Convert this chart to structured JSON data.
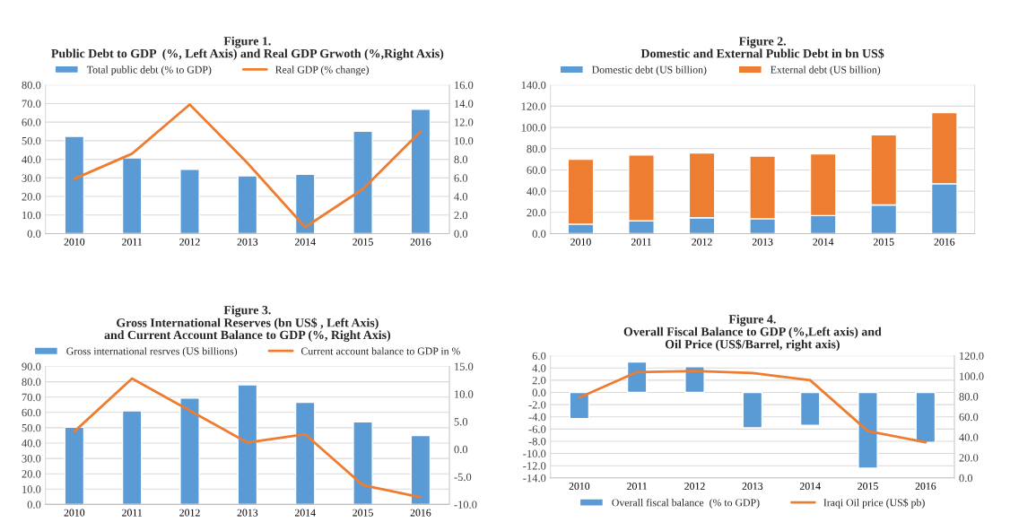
{
  "chart_data": [
    {
      "type": "bar",
      "title": "Figure 1.\nPublic Debt to GDP  (%, Left Axis) and Real GDP Grwoth (%,Right Axis)",
      "categories": [
        "2010",
        "2011",
        "2012",
        "2013",
        "2014",
        "2015",
        "2016"
      ],
      "series": [
        {
          "name": "Total public debt (% to GDP)",
          "type": "bar",
          "color": "#5b9bd5",
          "values": [
            52.3,
            40.8,
            34.6,
            31.1,
            31.9,
            55.1,
            66.9
          ]
        },
        {
          "name": "Real GDP (% change)",
          "type": "line",
          "axis": "y2",
          "color": "#ed7d31",
          "values": [
            5.9,
            8.6,
            13.9,
            7.6,
            0.7,
            4.8,
            11.0
          ]
        }
      ],
      "ylim": [
        0,
        80
      ],
      "yticks": [
        {
          "value": 0,
          "label": "0.0"
        },
        {
          "value": 10,
          "label": "10.0"
        },
        {
          "value": 20,
          "label": "20.0"
        },
        {
          "value": 30,
          "label": "30.0"
        },
        {
          "value": 40,
          "label": "40.0"
        },
        {
          "value": 50,
          "label": "50.0"
        },
        {
          "value": 60,
          "label": "60.0"
        },
        {
          "value": 70,
          "label": "70.0"
        },
        {
          "value": 80,
          "label": "80.0"
        }
      ],
      "y2lim": [
        0,
        16
      ],
      "y2ticks": [
        {
          "value": 0,
          "label": "0.0"
        },
        {
          "value": 2,
          "label": "2.0"
        },
        {
          "value": 4,
          "label": "4.0"
        },
        {
          "value": 6,
          "label": "6.0"
        },
        {
          "value": 8,
          "label": "8.0"
        },
        {
          "value": 10,
          "label": "10.0"
        },
        {
          "value": 12,
          "label": "12.0"
        },
        {
          "value": 14,
          "label": "14.0"
        },
        {
          "value": 16,
          "label": "16.0"
        }
      ],
      "grid": "y",
      "legend": "top left"
    },
    {
      "type": "bar",
      "title": "Figure 2.\nDomestic and External Public Debt in bn US$",
      "categories": [
        "2010",
        "2011",
        "2012",
        "2013",
        "2014",
        "2015",
        "2016"
      ],
      "stacked": true,
      "series": [
        {
          "name": "Domestic debt (US billion)",
          "color": "#5b9bd5",
          "values": [
            9,
            12,
            15,
            14,
            17,
            27,
            47
          ]
        },
        {
          "name": "External debt (US billion)",
          "color": "#ed7d31",
          "values": [
            61,
            62,
            61,
            59,
            58,
            66,
            67
          ]
        }
      ],
      "ylim": [
        0,
        140
      ],
      "yticks": [
        {
          "value": 0,
          "label": "0.0"
        },
        {
          "value": 20,
          "label": "20.0"
        },
        {
          "value": 40,
          "label": "40.0"
        },
        {
          "value": 60,
          "label": "60.0"
        },
        {
          "value": 80,
          "label": "80.0"
        },
        {
          "value": 100,
          "label": "100.0"
        },
        {
          "value": 120,
          "label": "120.0"
        },
        {
          "value": 140,
          "label": "140.0"
        }
      ],
      "grid": "y",
      "legend": "top left"
    },
    {
      "type": "bar",
      "title": "Figure 3.\nGross International Reserves (bn US$ , Left Axis)\nand Current Account Balance to GDP (%, Right Axis)",
      "categories": [
        "2010",
        "2011",
        "2012",
        "2013",
        "2014",
        "2015",
        "2016"
      ],
      "series": [
        {
          "name": "Gross international resrves (US billions)",
          "type": "bar",
          "color": "#5b9bd5",
          "values": [
            50.4,
            61.0,
            69.3,
            78.0,
            66.6,
            53.8,
            45.0
          ]
        },
        {
          "name": "Current account balance to GDP in %",
          "type": "line",
          "axis": "y2",
          "color": "#ed7d31",
          "values": [
            3.2,
            12.8,
            7.0,
            1.2,
            2.7,
            -6.5,
            -8.7
          ]
        }
      ],
      "ylim": [
        0,
        90
      ],
      "yticks": [
        {
          "value": 0,
          "label": "0.0"
        },
        {
          "value": 10,
          "label": "10.0"
        },
        {
          "value": 20,
          "label": "20.0"
        },
        {
          "value": 30,
          "label": "30.0"
        },
        {
          "value": 40,
          "label": "40.0"
        },
        {
          "value": 50,
          "label": "50.0"
        },
        {
          "value": 60,
          "label": "60.0"
        },
        {
          "value": 70,
          "label": "70.0"
        },
        {
          "value": 80,
          "label": "80.0"
        },
        {
          "value": 90,
          "label": "90.0"
        }
      ],
      "y2lim": [
        -10,
        15
      ],
      "y2ticks": [
        {
          "value": -10,
          "label": "-10.0"
        },
        {
          "value": -5,
          "label": "-5.0"
        },
        {
          "value": 0,
          "label": "0.0"
        },
        {
          "value": 5,
          "label": "5.0"
        },
        {
          "value": 10,
          "label": "10.0"
        },
        {
          "value": 15,
          "label": "15.0"
        }
      ],
      "grid": "y",
      "legend": "top"
    },
    {
      "type": "bar",
      "title": "Figure 4.\nOverall Fiscal Balance to GDP (%,Left axis) and\nOil Price (US$/Barrel, right axis)",
      "categories": [
        "2010",
        "2011",
        "2012",
        "2013",
        "2014",
        "2015",
        "2016"
      ],
      "series": [
        {
          "name": "Overall fiscal balance  (% to GDP)",
          "type": "bar",
          "color": "#5b9bd5",
          "values": [
            -4.3,
            5.0,
            4.2,
            -5.8,
            -5.4,
            -12.4,
            -8.2
          ]
        },
        {
          "name": "Iraqi Oil price (US$ pb)",
          "type": "line",
          "axis": "y2",
          "color": "#ed7d31",
          "values": [
            79,
            104,
            105,
            103,
            96,
            46,
            35
          ]
        }
      ],
      "ylim": [
        -14,
        6
      ],
      "yticks": [
        {
          "value": -14,
          "label": "-14.0"
        },
        {
          "value": -12,
          "label": "-12.0"
        },
        {
          "value": -10,
          "label": "-10.0"
        },
        {
          "value": -8,
          "label": "-8.0"
        },
        {
          "value": -6,
          "label": "-6.0"
        },
        {
          "value": -4,
          "label": "-4.0"
        },
        {
          "value": -2,
          "label": "-2.0"
        },
        {
          "value": 0,
          "label": "0.0"
        },
        {
          "value": 2,
          "label": "2.0"
        },
        {
          "value": 4,
          "label": "4.0"
        },
        {
          "value": 6,
          "label": "6.0"
        }
      ],
      "y2lim": [
        0,
        120
      ],
      "y2ticks": [
        {
          "value": 0,
          "label": "0.0"
        },
        {
          "value": 20,
          "label": "20.0"
        },
        {
          "value": 40,
          "label": "40.0"
        },
        {
          "value": 60,
          "label": "60.0"
        },
        {
          "value": 80,
          "label": "80.0"
        },
        {
          "value": 100,
          "label": "100.0"
        },
        {
          "value": 120,
          "label": "120.0"
        }
      ],
      "grid": "y",
      "legend": "bottom"
    }
  ]
}
